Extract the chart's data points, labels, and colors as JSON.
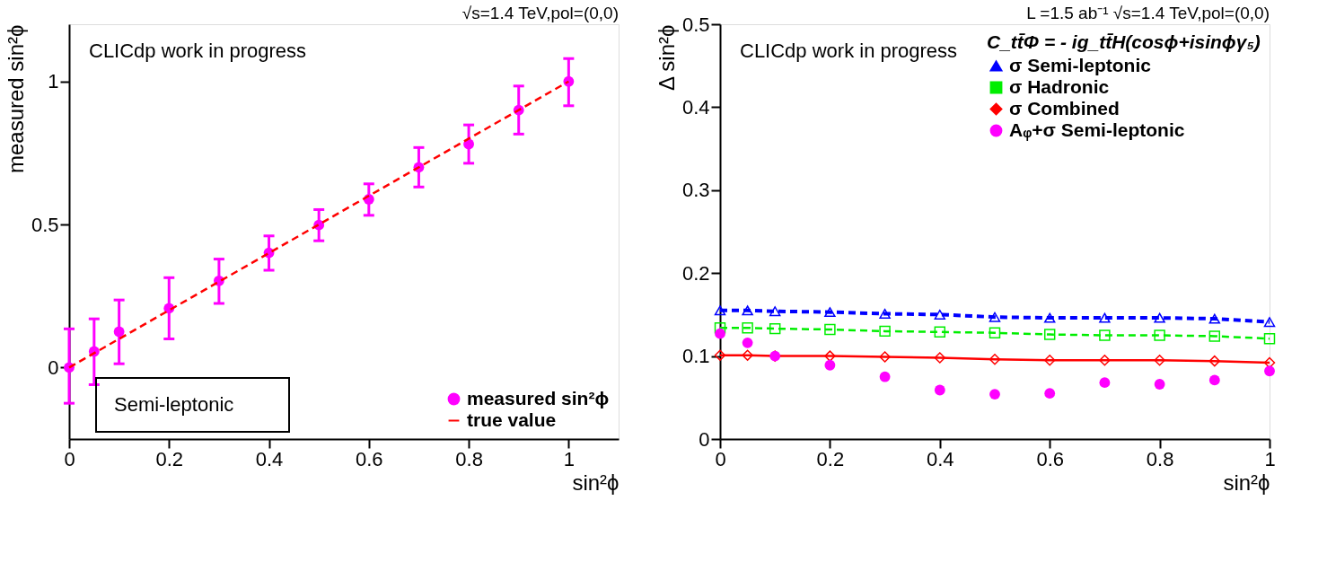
{
  "chart_data": [
    {
      "type": "scatter",
      "xlabel": "sin²ϕ",
      "ylabel": "measured sin²ϕ",
      "xlim": [
        0,
        1.1
      ],
      "ylim": [
        -0.25,
        1.2
      ],
      "xticks": [
        0,
        0.2,
        0.4,
        0.6,
        0.8,
        1
      ],
      "yticks": [
        0,
        0.5,
        1
      ],
      "grid": false,
      "legend": "bottom right",
      "annotations": [
        "√s=1.4 TeV,pol=(0,0)",
        "CLICdp work in progress",
        "Semi-leptonic"
      ],
      "series": [
        {
          "name": "measured sin²ϕ",
          "color": "#ff00ff",
          "marker": "circle",
          "x": [
            0,
            0.05,
            0.1,
            0.2,
            0.3,
            0.4,
            0.5,
            0.6,
            0.7,
            0.8,
            0.9,
            1
          ],
          "values": [
            0,
            0.056,
            0.125,
            0.207,
            0.303,
            0.401,
            0.498,
            0.588,
            0.7,
            0.781,
            0.9,
            1.0
          ],
          "errors": [
            [
              -0.125,
              0.135
            ],
            [
              -0.06,
              0.17
            ],
            [
              0.013,
              0.236
            ],
            [
              0.1,
              0.314
            ],
            [
              0.224,
              0.379
            ],
            [
              0.34,
              0.46
            ],
            [
              0.443,
              0.552
            ],
            [
              0.532,
              0.642
            ],
            [
              0.631,
              0.769
            ],
            [
              0.714,
              0.848
            ],
            [
              0.816,
              0.984
            ],
            [
              0.915,
              1.08
            ]
          ]
        },
        {
          "name": "true value",
          "type": "line",
          "color": "#ff0000",
          "marker": "none",
          "line_style": "dashed",
          "x": [
            0,
            1
          ],
          "values": [
            0,
            1
          ]
        }
      ]
    },
    {
      "type": "line",
      "xlabel": "sin²ϕ",
      "ylabel": "Δ sin²ϕ",
      "xlim": [
        0,
        1
      ],
      "ylim": [
        0,
        0.5
      ],
      "xticks": [
        0,
        0.2,
        0.4,
        0.6,
        0.8,
        1
      ],
      "yticks": [
        0,
        0.1,
        0.2,
        0.3,
        0.4,
        0.5
      ],
      "grid": false,
      "legend": "top right",
      "legend_title": "C_tt̄Φ = - ig_tt̄H(cosϕ+isinϕγ₅)",
      "annotations": [
        "L =1.5 ab⁻¹  √s=1.4 TeV,pol=(0,0)",
        "CLICdp work in progress"
      ],
      "x": [
        0,
        0.05,
        0.1,
        0.2,
        0.3,
        0.4,
        0.5,
        0.6,
        0.7,
        0.8,
        0.9,
        1
      ],
      "series": [
        {
          "name": "σ Semi-leptonic",
          "color": "#0000ff",
          "marker": "triangle",
          "line_style": "dashed",
          "values": [
            0.155,
            0.155,
            0.154,
            0.153,
            0.151,
            0.15,
            0.147,
            0.146,
            0.146,
            0.146,
            0.145,
            0.141
          ]
        },
        {
          "name": "σ Hadronic",
          "color": "#00ee00",
          "marker": "square",
          "line_style": "dashed",
          "values": [
            0.134,
            0.134,
            0.133,
            0.132,
            0.13,
            0.129,
            0.128,
            0.126,
            0.125,
            0.125,
            0.124,
            0.121
          ]
        },
        {
          "name": "σ Combined",
          "color": "#ff0000",
          "marker": "diamond",
          "line_style": "solid",
          "values": [
            0.101,
            0.101,
            0.1,
            0.1,
            0.099,
            0.098,
            0.096,
            0.095,
            0.095,
            0.095,
            0.094,
            0.092
          ]
        },
        {
          "name": "Aᵩ+σ Semi-leptonic",
          "type": "scatter",
          "color": "#ff00ff",
          "marker": "circle",
          "values": [
            0.127,
            0.116,
            0.1,
            0.089,
            0.075,
            0.059,
            0.054,
            0.055,
            0.068,
            0.066,
            0.071,
            0.082
          ]
        }
      ]
    }
  ]
}
